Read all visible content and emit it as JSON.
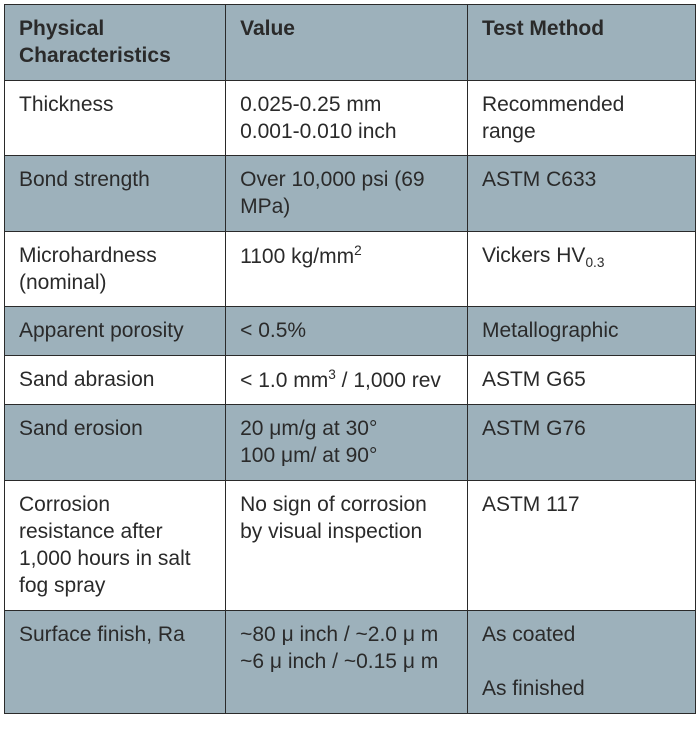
{
  "table": {
    "columns": [
      {
        "label": "Physical Characteristics",
        "width": "32%"
      },
      {
        "label": "Value",
        "width": "35%"
      },
      {
        "label": "Test Method",
        "width": "33%"
      }
    ],
    "header_bg": "#9db1bb",
    "shade_bg": "#9db1bb",
    "plain_bg": "#ffffff",
    "border_color": "#2a2a2a",
    "text_color": "#2a2a2a",
    "font_size": 21,
    "rows": [
      {
        "shade": false,
        "cells": [
          "Thickness",
          "0.025-0.25 mm\n0.001-0.010 inch",
          "Recommended range"
        ]
      },
      {
        "shade": true,
        "cells": [
          "Bond strength",
          "Over 10,000 psi (69 MPa)",
          "ASTM C633"
        ]
      },
      {
        "shade": false,
        "cells": [
          "Microhardness (nominal)",
          "1100 kg/mm²",
          "Vickers HV_{0.3}"
        ],
        "value_html": "1100 kg/mm<sup>2</sup>",
        "method_html": "Vickers HV<sub>0.3</sub>"
      },
      {
        "shade": true,
        "cells": [
          "Apparent porosity",
          "< 0.5%",
          "Metallographic"
        ]
      },
      {
        "shade": false,
        "cells": [
          "Sand abrasion",
          "< 1.0 mm³ / 1,000 rev",
          "ASTM G65"
        ],
        "value_html": "< 1.0 mm<sup>3</sup> / 1,000 rev"
      },
      {
        "shade": true,
        "cells": [
          "Sand erosion",
          "20 μm/g at 30°\n100 μm/ at 90°",
          "ASTM G76"
        ]
      },
      {
        "shade": false,
        "cells": [
          "Corrosion resistance after 1,000 hours in salt fog spray",
          "No sign of corrosion by visual inspection",
          "ASTM 117"
        ]
      },
      {
        "shade": true,
        "cells": [
          "Surface finish, Ra",
          "~80 μ inch / ~2.0 μ m\n~6 μ inch / ~0.15 μ m",
          "As coated\n\nAs finished"
        ]
      }
    ]
  }
}
